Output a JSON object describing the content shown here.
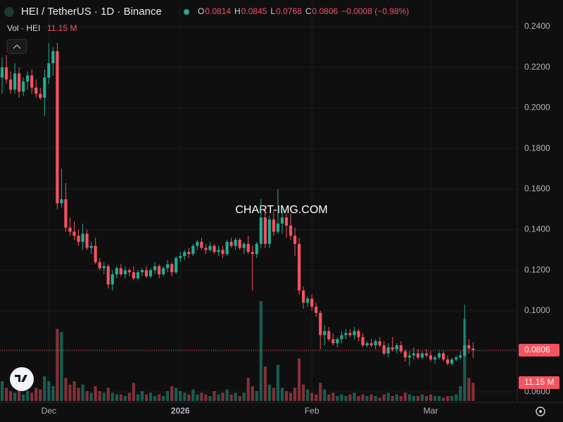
{
  "chart_data": {
    "type": "candlestick",
    "title": "HEI / TetherUS · 1D · Binance",
    "ohlc_labels": [
      "O",
      "H",
      "L",
      "C"
    ],
    "change_label": "−0.0008 (−0.98%)",
    "volume_title": "Vol · HEI",
    "volume_value_label": "11.15 M",
    "watermark": "CHART-IMG.COM",
    "up_color": "#22ab94",
    "down_color": "#f7525f",
    "grid": true,
    "xlim": [
      -0.5,
      121.4
    ],
    "xticks": [
      {
        "value": 11,
        "label": "Dec"
      },
      {
        "value": 42,
        "label": "2026"
      },
      {
        "value": 73,
        "label": "Feb"
      },
      {
        "value": 101,
        "label": "Mar"
      }
    ],
    "ylim": [
      0.0549,
      0.2532
    ],
    "yticks": [
      {
        "value": 0.06,
        "label": "0.0600"
      },
      {
        "value": 0.08,
        "label": "0.0800"
      },
      {
        "value": 0.1,
        "label": "0.1000"
      },
      {
        "value": 0.12,
        "label": "0.1200"
      },
      {
        "value": 0.14,
        "label": "0.1400"
      },
      {
        "value": 0.16,
        "label": "0.1600"
      },
      {
        "value": 0.18,
        "label": "0.1800"
      },
      {
        "value": 0.2,
        "label": "0.2000"
      },
      {
        "value": 0.22,
        "label": "0.2200"
      },
      {
        "value": 0.24,
        "label": "0.2400"
      }
    ],
    "vlim": [
      0,
      245
    ],
    "open": [
      0.215,
      0.22,
      0.214,
      0.209,
      0.217,
      0.208,
      0.213,
      0.216,
      0.21,
      0.207,
      0.205,
      0.215,
      0.222,
      0.228,
      0.153,
      0.155,
      0.141,
      0.139,
      0.137,
      0.134,
      0.138,
      0.131,
      0.132,
      0.124,
      0.121,
      0.122,
      0.113,
      0.118,
      0.121,
      0.118,
      0.12,
      0.119,
      0.116,
      0.119,
      0.12,
      0.117,
      0.12,
      0.122,
      0.118,
      0.121,
      0.123,
      0.119,
      0.126,
      0.127,
      0.129,
      0.128,
      0.132,
      0.134,
      0.131,
      0.13,
      0.132,
      0.129,
      0.13,
      0.128,
      0.134,
      0.132,
      0.135,
      0.131,
      0.133,
      0.129,
      0.128,
      0.133,
      0.146,
      0.133,
      0.145,
      0.139,
      0.143,
      0.146,
      0.142,
      0.137,
      0.133,
      0.11,
      0.104,
      0.106,
      0.102,
      0.099,
      0.088,
      0.09,
      0.086,
      0.084,
      0.086,
      0.088,
      0.089,
      0.088,
      0.09,
      0.087,
      0.083,
      0.084,
      0.083,
      0.085,
      0.083,
      0.079,
      0.082,
      0.081,
      0.083,
      0.08,
      0.077,
      0.078,
      0.079,
      0.077,
      0.079,
      0.078,
      0.076,
      0.077,
      0.079,
      0.076,
      0.074,
      0.076,
      0.077,
      0.078,
      0.083,
      0.0814
    ],
    "high": [
      0.225,
      0.226,
      0.218,
      0.222,
      0.22,
      0.215,
      0.218,
      0.219,
      0.214,
      0.21,
      0.219,
      0.232,
      0.23,
      0.232,
      0.17,
      0.163,
      0.146,
      0.144,
      0.14,
      0.143,
      0.14,
      0.134,
      0.136,
      0.126,
      0.124,
      0.123,
      0.12,
      0.122,
      0.123,
      0.122,
      0.121,
      0.122,
      0.12,
      0.121,
      0.122,
      0.121,
      0.124,
      0.123,
      0.122,
      0.125,
      0.124,
      0.127,
      0.129,
      0.13,
      0.131,
      0.133,
      0.135,
      0.136,
      0.133,
      0.134,
      0.133,
      0.132,
      0.132,
      0.135,
      0.136,
      0.136,
      0.136,
      0.134,
      0.137,
      0.132,
      0.134,
      0.155,
      0.151,
      0.147,
      0.149,
      0.16,
      0.15,
      0.148,
      0.148,
      0.141,
      0.136,
      0.112,
      0.107,
      0.108,
      0.104,
      0.1,
      0.093,
      0.092,
      0.089,
      0.087,
      0.09,
      0.091,
      0.091,
      0.092,
      0.091,
      0.089,
      0.085,
      0.086,
      0.086,
      0.087,
      0.085,
      0.084,
      0.087,
      0.084,
      0.085,
      0.081,
      0.08,
      0.082,
      0.081,
      0.08,
      0.081,
      0.08,
      0.078,
      0.08,
      0.08,
      0.078,
      0.077,
      0.078,
      0.08,
      0.103,
      0.086,
      0.0845
    ],
    "low": [
      0.207,
      0.212,
      0.207,
      0.207,
      0.205,
      0.206,
      0.209,
      0.207,
      0.205,
      0.204,
      0.196,
      0.212,
      0.216,
      0.15,
      0.151,
      0.139,
      0.137,
      0.135,
      0.132,
      0.13,
      0.13,
      0.128,
      0.123,
      0.12,
      0.118,
      0.111,
      0.11,
      0.116,
      0.117,
      0.116,
      0.117,
      0.115,
      0.115,
      0.117,
      0.116,
      0.116,
      0.118,
      0.116,
      0.117,
      0.119,
      0.117,
      0.118,
      0.124,
      0.125,
      0.126,
      0.127,
      0.13,
      0.13,
      0.128,
      0.129,
      0.128,
      0.127,
      0.126,
      0.127,
      0.131,
      0.13,
      0.13,
      0.128,
      0.128,
      0.11,
      0.126,
      0.131,
      0.131,
      0.131,
      0.137,
      0.138,
      0.138,
      0.136,
      0.135,
      0.127,
      0.108,
      0.101,
      0.102,
      0.1,
      0.097,
      0.081,
      0.083,
      0.085,
      0.083,
      0.082,
      0.084,
      0.086,
      0.087,
      0.086,
      0.085,
      0.082,
      0.082,
      0.082,
      0.081,
      0.082,
      0.078,
      0.077,
      0.08,
      0.079,
      0.079,
      0.075,
      0.073,
      0.076,
      0.076,
      0.076,
      0.077,
      0.075,
      0.074,
      0.076,
      0.075,
      0.073,
      0.073,
      0.075,
      0.076,
      0.077,
      0.079,
      0.0768
    ],
    "close": [
      0.22,
      0.214,
      0.209,
      0.217,
      0.208,
      0.213,
      0.216,
      0.21,
      0.207,
      0.205,
      0.215,
      0.222,
      0.228,
      0.153,
      0.155,
      0.141,
      0.139,
      0.137,
      0.134,
      0.138,
      0.131,
      0.132,
      0.124,
      0.121,
      0.122,
      0.113,
      0.118,
      0.121,
      0.118,
      0.12,
      0.119,
      0.116,
      0.119,
      0.12,
      0.117,
      0.12,
      0.122,
      0.118,
      0.121,
      0.123,
      0.119,
      0.126,
      0.127,
      0.129,
      0.128,
      0.132,
      0.134,
      0.131,
      0.13,
      0.132,
      0.129,
      0.13,
      0.128,
      0.134,
      0.132,
      0.135,
      0.131,
      0.133,
      0.129,
      0.128,
      0.133,
      0.146,
      0.133,
      0.145,
      0.139,
      0.143,
      0.146,
      0.142,
      0.137,
      0.133,
      0.11,
      0.104,
      0.106,
      0.102,
      0.099,
      0.088,
      0.09,
      0.086,
      0.084,
      0.086,
      0.088,
      0.089,
      0.088,
      0.09,
      0.087,
      0.083,
      0.084,
      0.083,
      0.085,
      0.083,
      0.079,
      0.082,
      0.081,
      0.083,
      0.08,
      0.077,
      0.078,
      0.079,
      0.077,
      0.079,
      0.078,
      0.076,
      0.077,
      0.079,
      0.076,
      0.074,
      0.076,
      0.077,
      0.078,
      0.083,
      0.0814,
      0.0806
    ],
    "volume": [
      12,
      8,
      6,
      5,
      7,
      4,
      6,
      5,
      8,
      7,
      15,
      12,
      9,
      44,
      42,
      14,
      10,
      12,
      8,
      10,
      6,
      5,
      9,
      6,
      5,
      8,
      5,
      4,
      4,
      3,
      5,
      11,
      4,
      6,
      4,
      5,
      3,
      4,
      3,
      6,
      9,
      8,
      6,
      5,
      4,
      7,
      4,
      5,
      4,
      3,
      6,
      4,
      5,
      7,
      4,
      5,
      3,
      5,
      14,
      9,
      6,
      61,
      21,
      10,
      8,
      22,
      8,
      6,
      5,
      8,
      26,
      10,
      7,
      5,
      4,
      11,
      7,
      4,
      5,
      3,
      4,
      3,
      4,
      5,
      3,
      4,
      3,
      4,
      3,
      2,
      4,
      5,
      3,
      4,
      3,
      5,
      4,
      3,
      3,
      4,
      3,
      4,
      3,
      3,
      2,
      3,
      3,
      4,
      9,
      50,
      14,
      11.15
    ]
  }
}
